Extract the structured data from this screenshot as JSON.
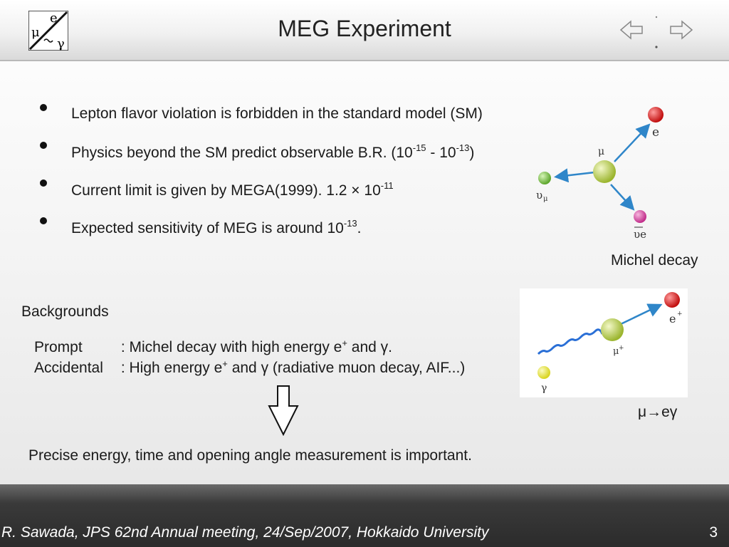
{
  "header": {
    "title": "MEG Experiment",
    "logo": {
      "top_letter": "e",
      "left_letter": "μ",
      "right_letter": "γ"
    }
  },
  "bullets": [
    {
      "text": "Lepton flavor violation is forbidden in the standard model (SM)",
      "parts": []
    },
    {
      "text": "",
      "parts": [
        "Physics beyond the SM predict observable B.R. (10",
        "-15",
        " - 10",
        "-13",
        ")"
      ]
    },
    {
      "text": "",
      "parts": [
        "Current limit is given by MEGA(1999). 1.2 × 10",
        "-11"
      ]
    },
    {
      "text": "",
      "parts": [
        "Expected sensitivity of MEG is around 10",
        "-13",
        "."
      ]
    }
  ],
  "michel": {
    "caption": "Michel decay",
    "labels": {
      "mu": "μ",
      "e": "e",
      "nu_mu": "υ",
      "nu_mu_sub": "μ",
      "nu_e_bar": "υe"
    },
    "colors": {
      "mu": "#a8c43a",
      "e": "#d81e1e",
      "nu_mu": "#7ac143",
      "nu_e": "#d63fa0"
    }
  },
  "backgrounds": {
    "heading": "Backgrounds",
    "prompt_label": "Prompt",
    "prompt_text_1": " : Michel decay with high energy e",
    "prompt_sup": "+",
    "prompt_text_2": " and γ.",
    "accidental_label": "Accidental",
    "accidental_text_1": " : High energy e",
    "accidental_sup": "+",
    "accidental_text_2": " and γ (radiative muon decay, AIF...)"
  },
  "meg_decay": {
    "caption": "μ→eγ",
    "labels": {
      "e": "e",
      "e_sup": "+",
      "mu": "μ",
      "mu_sup": "+",
      "gamma": "γ"
    },
    "colors": {
      "e": "#d81e1e",
      "mu": "#a8c43a",
      "gamma": "#e3e02a",
      "photon": "#2a6fd6"
    }
  },
  "conclusion": "Precise energy, time and opening angle measurement is important.",
  "footer": {
    "text": "R. Sawada, JPS 62nd Annual meeting, 24/Sep/2007, Hokkaido University",
    "page": "3"
  }
}
